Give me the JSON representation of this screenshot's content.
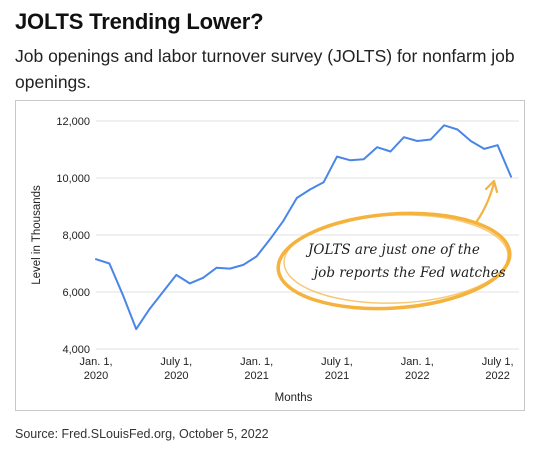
{
  "header": {
    "title": "JOLTS Trending Lower?",
    "subtitle": "Job openings and labor turnover survey (JOLTS) for nonfarm job openings."
  },
  "footer": {
    "source": "Source: Fred.SLouisFed.org, October 5, 2022"
  },
  "colors": {
    "line": "#4a86e8",
    "grid": "#e2e2e2",
    "annotation": "#f5b23c"
  },
  "chart_data": {
    "type": "line",
    "xlabel": "Months",
    "ylabel": "Level in Thousands",
    "ylim": [
      4000,
      12000
    ],
    "grid": "horizontal",
    "yticks": [
      {
        "value": 4000,
        "label": "4,000"
      },
      {
        "value": 6000,
        "label": "6,000"
      },
      {
        "value": 8000,
        "label": "8,000"
      },
      {
        "value": 10000,
        "label": "10,000"
      },
      {
        "value": 12000,
        "label": "12,000"
      }
    ],
    "xticks": [
      {
        "date": "2020-01",
        "label": [
          "Jan. 1,",
          "2020"
        ]
      },
      {
        "date": "2020-07",
        "label": [
          "July 1,",
          "2020"
        ]
      },
      {
        "date": "2021-01",
        "label": [
          "Jan. 1,",
          "2021"
        ]
      },
      {
        "date": "2021-07",
        "label": [
          "July 1,",
          "2021"
        ]
      },
      {
        "date": "2022-01",
        "label": [
          "Jan. 1,",
          "2022"
        ]
      },
      {
        "date": "2022-07",
        "label": [
          "July 1,",
          "2022"
        ]
      }
    ],
    "series": [
      {
        "x": [
          "2020-01",
          "2020-02",
          "2020-03",
          "2020-04",
          "2020-05",
          "2020-06",
          "2020-07",
          "2020-08",
          "2020-09",
          "2020-10",
          "2020-11",
          "2020-12",
          "2021-01",
          "2021-02",
          "2021-03",
          "2021-04",
          "2021-05",
          "2021-06",
          "2021-07",
          "2021-08",
          "2021-09",
          "2021-10",
          "2021-11",
          "2021-12",
          "2022-01",
          "2022-02",
          "2022-03",
          "2022-04",
          "2022-05",
          "2022-06",
          "2022-07",
          "2022-08"
        ],
        "values": [
          7150,
          7000,
          5900,
          4700,
          5400,
          6000,
          6600,
          6300,
          6500,
          6850,
          6820,
          6950,
          7250,
          7850,
          8500,
          9300,
          9600,
          9850,
          10750,
          10620,
          10660,
          11080,
          10930,
          11430,
          11300,
          11350,
          11850,
          11700,
          11300,
          11020,
          11150,
          10050
        ]
      }
    ],
    "annotation": {
      "lines": [
        "JOLTS are just one of the",
        "job reports the Fed watches"
      ]
    }
  }
}
